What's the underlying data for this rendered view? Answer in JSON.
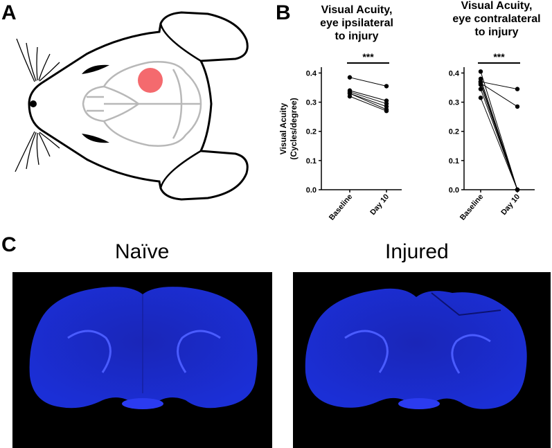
{
  "panels": {
    "a": "A",
    "b": "B",
    "c": "C"
  },
  "chart_data": [
    {
      "type": "line",
      "title_lines": [
        "Visual Acuity,",
        "eye ipsilateral",
        "to injury"
      ],
      "ylabel_lines": [
        "Visual  Acuity",
        "(Cycles/degree)"
      ],
      "categories": [
        "Baseline",
        "Day 10"
      ],
      "yticks": [
        "0.0",
        "0.1",
        "0.2",
        "0.3",
        "0.4"
      ],
      "ylim": [
        0,
        0.42
      ],
      "significance": "***",
      "series": [
        {
          "values": [
            0.385,
            0.355
          ]
        },
        {
          "values": [
            0.34,
            0.305
          ]
        },
        {
          "values": [
            0.335,
            0.295
          ]
        },
        {
          "values": [
            0.33,
            0.285
          ]
        },
        {
          "values": [
            0.33,
            0.275
          ]
        },
        {
          "values": [
            0.32,
            0.27
          ]
        }
      ]
    },
    {
      "type": "line",
      "title_lines": [
        "Visual  Acuity,",
        "eye contralateral",
        "to injury"
      ],
      "categories": [
        "Baseline",
        "Day 10"
      ],
      "yticks": [
        "0.0",
        "0.1",
        "0.2",
        "0.3",
        "0.4"
      ],
      "ylim": [
        0,
        0.42
      ],
      "significance": "***",
      "series": [
        {
          "values": [
            0.37,
            0.345
          ]
        },
        {
          "values": [
            0.365,
            0.285
          ]
        },
        {
          "values": [
            0.405,
            0.0
          ]
        },
        {
          "values": [
            0.38,
            0.0
          ]
        },
        {
          "values": [
            0.37,
            0.0
          ]
        },
        {
          "values": [
            0.36,
            0.0
          ]
        },
        {
          "values": [
            0.345,
            0.0
          ]
        },
        {
          "values": [
            0.315,
            0.0
          ]
        }
      ]
    }
  ],
  "sections": {
    "naive_label": "Naïve",
    "injured_label": "Injured"
  },
  "colors": {
    "injury_spot": "#f46a6e",
    "brain_outline": "#b8b8b8",
    "stain": "#1f2ee0"
  }
}
